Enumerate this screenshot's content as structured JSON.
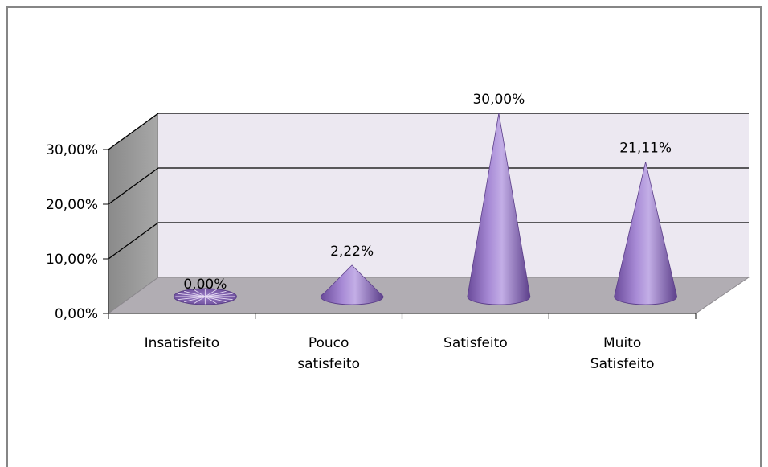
{
  "chart_data": {
    "type": "bar",
    "style": "3d-cone",
    "categories": [
      [
        "Insatisfeito"
      ],
      [
        "Pouco",
        "satisfeito"
      ],
      [
        "Satisfeito"
      ],
      [
        "Muito",
        "Satisfeito"
      ]
    ],
    "values": [
      0.0,
      2.22,
      30.0,
      21.11
    ],
    "data_labels": [
      "0,00%",
      "2,22%",
      "30,00%",
      "21,11%"
    ],
    "y_ticks": [
      0,
      10,
      20,
      30
    ],
    "y_tick_labels": [
      "0,00%",
      "10,00%",
      "20,00%",
      "30,00%"
    ],
    "ylim": [
      0,
      30
    ],
    "grid": true,
    "legend": "none",
    "colors": {
      "cone": "#8e6bbf",
      "back_wall": "#ece8f1",
      "side_wall": "#9b9b9b",
      "floor": "#b1adb3",
      "grid": "#000000"
    }
  }
}
